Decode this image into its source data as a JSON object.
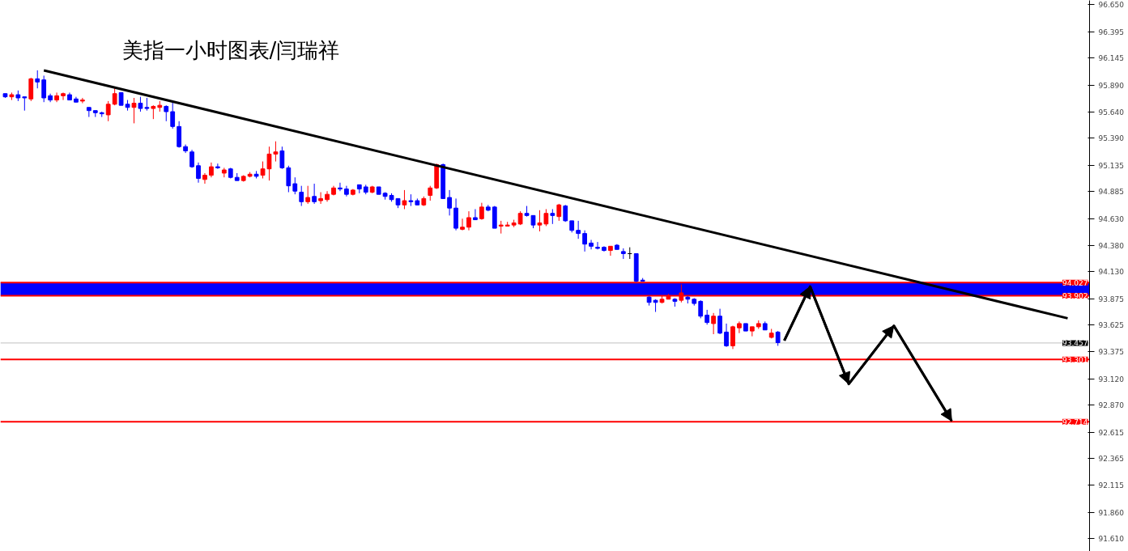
{
  "chart_data": {
    "type": "candlestick",
    "title": "美指一小时图表/闫瑞祥",
    "categories": [
      null,
      null,
      null,
      null,
      null,
      null,
      null,
      null,
      null,
      null,
      null,
      null,
      null,
      null,
      null,
      null,
      null,
      null,
      null,
      null,
      null,
      null,
      null,
      null,
      null,
      null,
      null,
      null,
      null,
      null,
      null,
      null,
      null,
      null,
      null,
      null,
      null,
      null,
      null,
      null,
      null,
      null,
      null,
      null,
      null,
      null,
      null,
      null,
      null,
      null,
      null,
      null,
      null,
      null,
      null,
      null,
      null,
      null,
      null,
      null,
      null,
      null,
      null,
      null,
      null,
      null,
      null,
      null,
      null,
      null,
      null,
      null,
      null,
      null,
      null,
      null,
      null,
      null,
      null,
      null,
      null,
      null,
      null,
      null,
      null,
      null,
      null,
      null,
      null,
      null,
      null,
      null,
      null,
      null,
      null,
      null,
      null,
      null,
      null,
      null,
      null,
      null,
      null,
      null,
      null,
      null,
      null,
      null,
      null,
      null,
      null,
      null,
      null,
      null,
      null,
      null,
      null,
      null,
      null,
      null,
      null,
      null,
      null,
      null,
      null,
      null,
      null,
      null,
      null,
      null,
      null,
      null,
      null,
      null,
      null,
      null,
      null,
      null,
      null,
      null,
      null,
      null,
      null,
      null,
      null,
      null,
      null,
      null,
      null,
      null,
      null,
      null,
      null,
      null,
      null,
      null,
      null,
      null,
      null,
      null,
      null,
      null,
      null,
      null,
      null,
      null,
      null,
      null,
      null
    ],
    "ohlc": [
      [
        95.81,
        95.81,
        95.77,
        95.78
      ],
      [
        95.78,
        95.82,
        95.75,
        95.8
      ],
      [
        95.8,
        95.84,
        95.74,
        95.77
      ],
      [
        95.78,
        95.78,
        95.65,
        95.77
      ],
      [
        95.76,
        95.96,
        95.74,
        95.95
      ],
      [
        95.95,
        96.03,
        95.86,
        95.92
      ],
      [
        95.94,
        95.98,
        95.73,
        95.77
      ],
      [
        95.79,
        95.81,
        95.73,
        95.75
      ],
      [
        95.75,
        95.82,
        95.73,
        95.79
      ],
      [
        95.79,
        95.82,
        95.75,
        95.81
      ],
      [
        95.8,
        95.82,
        95.75,
        95.75
      ],
      [
        95.76,
        95.78,
        95.73,
        95.73
      ],
      [
        95.74,
        95.77,
        95.72,
        95.75
      ],
      [
        95.68,
        95.68,
        95.59,
        95.65
      ],
      [
        95.65,
        95.65,
        95.59,
        95.63
      ],
      [
        95.63,
        95.64,
        95.59,
        95.62
      ],
      [
        95.61,
        95.74,
        95.55,
        95.71
      ],
      [
        95.71,
        95.86,
        95.7,
        95.81
      ],
      [
        95.82,
        95.82,
        95.7,
        95.7
      ],
      [
        95.71,
        95.75,
        95.65,
        95.68
      ],
      [
        95.68,
        95.77,
        95.53,
        95.72
      ],
      [
        95.72,
        95.78,
        95.64,
        95.67
      ],
      [
        95.68,
        95.77,
        95.65,
        95.67
      ],
      [
        95.67,
        95.7,
        95.57,
        95.69
      ],
      [
        95.68,
        95.74,
        95.64,
        95.7
      ],
      [
        95.69,
        95.7,
        95.55,
        95.64
      ],
      [
        95.64,
        95.74,
        95.48,
        95.5
      ],
      [
        95.5,
        95.55,
        95.3,
        95.31
      ],
      [
        95.31,
        95.33,
        95.25,
        95.27
      ],
      [
        95.26,
        95.28,
        95.11,
        95.12
      ],
      [
        95.13,
        95.16,
        94.97,
        95.01
      ],
      [
        95.0,
        95.06,
        94.96,
        95.04
      ],
      [
        95.04,
        95.16,
        95.02,
        95.12
      ],
      [
        95.12,
        95.15,
        95.1,
        95.11
      ],
      [
        95.06,
        95.11,
        95.02,
        95.09
      ],
      [
        95.1,
        95.11,
        95.01,
        95.02
      ],
      [
        95.02,
        95.06,
        94.99,
        94.99
      ],
      [
        94.99,
        95.04,
        94.98,
        95.03
      ],
      [
        95.03,
        95.07,
        95.02,
        95.05
      ],
      [
        95.05,
        95.08,
        95.01,
        95.03
      ],
      [
        95.04,
        95.17,
        95.01,
        95.1
      ],
      [
        95.1,
        95.31,
        94.99,
        95.24
      ],
      [
        95.24,
        95.36,
        95.17,
        95.26
      ],
      [
        95.27,
        95.31,
        95.1,
        95.11
      ],
      [
        95.11,
        95.13,
        94.88,
        94.94
      ],
      [
        94.96,
        95.02,
        94.86,
        94.89
      ],
      [
        94.88,
        94.94,
        94.75,
        94.79
      ],
      [
        94.79,
        94.94,
        94.77,
        94.83
      ],
      [
        94.84,
        94.96,
        94.77,
        94.79
      ],
      [
        94.8,
        94.88,
        94.77,
        94.82
      ],
      [
        94.81,
        94.89,
        94.79,
        94.86
      ],
      [
        94.86,
        94.94,
        94.85,
        94.92
      ],
      [
        94.92,
        94.97,
        94.89,
        94.91
      ],
      [
        94.91,
        94.94,
        94.84,
        94.86
      ],
      [
        94.86,
        94.91,
        94.85,
        94.9
      ],
      [
        94.95,
        94.95,
        94.87,
        94.91
      ],
      [
        94.93,
        94.95,
        94.86,
        94.88
      ],
      [
        94.88,
        94.94,
        94.87,
        94.93
      ],
      [
        94.93,
        94.93,
        94.86,
        94.86
      ],
      [
        94.87,
        94.88,
        94.81,
        94.84
      ],
      [
        94.85,
        94.87,
        94.79,
        94.81
      ],
      [
        94.82,
        94.82,
        94.73,
        94.76
      ],
      [
        94.76,
        94.9,
        94.72,
        94.8
      ],
      [
        94.8,
        94.86,
        94.75,
        94.79
      ],
      [
        94.8,
        94.82,
        94.76,
        94.76
      ],
      [
        94.76,
        94.84,
        94.75,
        94.82
      ],
      [
        94.85,
        94.94,
        94.8,
        94.92
      ],
      [
        94.92,
        95.15,
        94.91,
        95.14
      ],
      [
        95.14,
        95.15,
        94.82,
        94.82
      ],
      [
        94.83,
        94.9,
        94.66,
        94.73
      ],
      [
        94.73,
        94.82,
        94.52,
        94.54
      ],
      [
        94.53,
        94.63,
        94.52,
        94.55
      ],
      [
        94.55,
        94.7,
        94.52,
        94.64
      ],
      [
        94.64,
        94.72,
        94.62,
        94.62
      ],
      [
        94.63,
        94.78,
        94.62,
        94.74
      ],
      [
        94.74,
        94.76,
        94.7,
        94.71
      ],
      [
        94.74,
        94.75,
        94.54,
        94.54
      ],
      [
        94.56,
        94.61,
        94.49,
        94.57
      ],
      [
        94.56,
        94.6,
        94.56,
        94.57
      ],
      [
        94.57,
        94.62,
        94.55,
        94.59
      ],
      [
        94.58,
        94.7,
        94.57,
        94.68
      ],
      [
        94.68,
        94.75,
        94.65,
        94.66
      ],
      [
        94.66,
        94.66,
        94.54,
        94.57
      ],
      [
        94.57,
        94.71,
        94.51,
        94.59
      ],
      [
        94.58,
        94.72,
        94.56,
        94.68
      ],
      [
        94.68,
        94.72,
        94.58,
        94.66
      ],
      [
        94.65,
        94.77,
        94.61,
        94.76
      ],
      [
        94.75,
        94.76,
        94.6,
        94.61
      ],
      [
        94.61,
        94.61,
        94.5,
        94.52
      ],
      [
        94.52,
        94.61,
        94.44,
        94.49
      ],
      [
        94.49,
        94.52,
        94.32,
        94.39
      ],
      [
        94.4,
        94.43,
        94.34,
        94.37
      ],
      [
        94.36,
        94.41,
        94.34,
        94.35
      ],
      [
        94.36,
        94.37,
        94.32,
        94.33
      ],
      [
        94.33,
        94.37,
        94.28,
        94.37
      ],
      [
        94.38,
        94.39,
        94.34,
        94.34
      ],
      [
        94.32,
        94.35,
        94.25,
        94.3
      ],
      [
        94.3,
        94.36,
        94.25,
        94.3
      ],
      [
        94.3,
        94.3,
        94.03,
        94.04
      ],
      [
        94.05,
        94.07,
        94.04,
        94.04
      ],
      [
        93.89,
        93.9,
        93.81,
        93.84
      ],
      [
        93.86,
        93.87,
        93.75,
        93.84
      ],
      [
        93.84,
        93.9,
        93.83,
        93.87
      ],
      [
        93.87,
        93.92,
        93.87,
        93.9
      ],
      [
        93.87,
        93.88,
        93.8,
        93.85
      ],
      [
        93.86,
        94.01,
        93.84,
        93.93
      ],
      [
        93.89,
        93.9,
        93.83,
        93.87
      ],
      [
        93.87,
        93.88,
        93.81,
        93.83
      ],
      [
        93.85,
        93.86,
        93.69,
        93.71
      ],
      [
        93.72,
        93.77,
        93.63,
        93.65
      ],
      [
        93.64,
        93.74,
        93.54,
        93.71
      ],
      [
        93.71,
        93.78,
        93.54,
        93.55
      ],
      [
        93.56,
        93.64,
        93.42,
        93.43
      ],
      [
        93.43,
        93.62,
        93.4,
        93.61
      ],
      [
        93.6,
        93.66,
        93.55,
        93.64
      ],
      [
        93.64,
        93.64,
        93.57,
        93.57
      ],
      [
        93.57,
        93.61,
        93.52,
        93.61
      ],
      [
        93.61,
        93.67,
        93.59,
        93.64
      ],
      [
        93.64,
        93.66,
        93.58,
        93.58
      ],
      [
        93.51,
        93.59,
        93.5,
        93.55
      ],
      [
        93.56,
        93.57,
        93.43,
        93.46
      ],
      null,
      null,
      null,
      null,
      null,
      null,
      null,
      null,
      null,
      null,
      null,
      null,
      null,
      null,
      null,
      null,
      null,
      null,
      null,
      null,
      null,
      null,
      null,
      null,
      null,
      null,
      null,
      null,
      null,
      null,
      null,
      null,
      null,
      null,
      null,
      null,
      null,
      null,
      null,
      null,
      null,
      null,
      null,
      null,
      null,
      null,
      null,
      null
    ],
    "colors": [
      "#0000ff",
      "#ff0000",
      "#0000ff",
      "#0000ff",
      "#ff0000",
      "#0000ff",
      "#0000ff",
      "#0000ff",
      "#ff0000",
      "#ff0000",
      "#0000ff",
      "#0000ff",
      "#ff0000",
      "#0000ff",
      "#0000ff",
      "#0000ff",
      "#ff0000",
      "#ff0000",
      "#0000ff",
      "#0000ff",
      "#ff0000",
      "#0000ff",
      "#0000ff",
      "#ff0000",
      "#ff0000",
      "#0000ff",
      "#0000ff",
      "#0000ff",
      "#0000ff",
      "#0000ff",
      "#0000ff",
      "#ff0000",
      "#ff0000",
      "#0000ff",
      "#ff0000",
      "#0000ff",
      "#0000ff",
      "#ff0000",
      "#ff0000",
      "#0000ff",
      "#ff0000",
      "#ff0000",
      "#ff0000",
      "#0000ff",
      "#0000ff",
      "#0000ff",
      "#0000ff",
      "#ff0000",
      "#0000ff",
      "#ff0000",
      "#ff0000",
      "#ff0000",
      "#0000ff",
      "#0000ff",
      "#ff0000",
      "#0000ff",
      "#0000ff",
      "#ff0000",
      "#0000ff",
      "#0000ff",
      "#0000ff",
      "#0000ff",
      "#ff0000",
      "#0000ff",
      "#0000ff",
      "#ff0000",
      "#ff0000",
      "#ff0000",
      "#0000ff",
      "#0000ff",
      "#0000ff",
      "#ff0000",
      "#ff0000",
      "#0000ff",
      "#ff0000",
      "#0000ff",
      "#0000ff",
      "#ff0000",
      "#ff0000",
      "#ff0000",
      "#ff0000",
      "#0000ff",
      "#0000ff",
      "#ff0000",
      "#ff0000",
      "#0000ff",
      "#ff0000",
      "#0000ff",
      "#0000ff",
      "#0000ff",
      "#0000ff",
      "#0000ff",
      "#0000ff",
      "#0000ff",
      "#ff0000",
      "#0000ff",
      "#0000ff",
      "#000000",
      "#0000ff",
      "#0000ff",
      "#0000ff",
      "#0000ff",
      "#ff0000",
      "#ff0000",
      "#0000ff",
      "#ff0000",
      "#0000ff",
      "#0000ff",
      "#0000ff",
      "#0000ff",
      "#ff0000",
      "#0000ff",
      "#0000ff",
      "#ff0000",
      "#ff0000",
      "#0000ff",
      "#ff0000",
      "#ff0000",
      "#0000ff",
      "#ff0000",
      "#0000ff",
      null,
      null,
      null,
      null,
      null,
      null,
      null,
      null,
      null,
      null,
      null,
      null,
      null,
      null,
      null,
      null,
      null,
      null,
      null,
      null,
      null,
      null,
      null,
      null,
      null,
      null,
      null,
      null,
      null,
      null,
      null,
      null,
      null,
      null,
      null,
      null,
      null,
      null,
      null,
      null,
      null,
      null,
      null,
      null,
      null,
      null,
      null,
      null
    ],
    "series": [
      {
        "type": "line",
        "color": "#000000",
        "values": [
          null,
          null,
          null,
          null,
          null,
          null,
          96.03,
          null,
          null,
          null,
          null,
          null,
          null,
          null,
          null,
          null,
          null,
          null,
          null,
          null,
          null,
          null,
          null,
          null,
          null,
          null,
          null,
          null,
          null,
          null,
          null,
          null,
          null,
          null,
          null,
          null,
          null,
          null,
          null,
          null,
          null,
          null,
          null,
          null,
          null,
          null,
          null,
          null,
          null,
          null,
          null,
          null,
          null,
          null,
          null,
          null,
          null,
          null,
          null,
          null,
          null,
          null,
          null,
          null,
          null,
          null,
          null,
          null,
          null,
          null,
          null,
          null,
          null,
          null,
          null,
          null,
          null,
          null,
          null,
          null,
          null,
          null,
          null,
          null,
          null,
          null,
          null,
          null,
          null,
          null,
          null,
          null,
          null,
          null,
          null,
          null,
          null,
          null,
          null,
          null,
          null,
          null,
          null,
          null,
          null,
          null,
          null,
          null,
          null,
          null,
          null,
          null,
          null,
          null,
          null,
          null,
          null,
          null,
          null,
          null,
          null,
          null,
          null,
          null,
          null,
          null,
          null,
          null,
          null,
          null,
          null,
          null,
          null,
          null,
          null,
          null,
          null,
          null,
          null,
          null,
          null,
          null,
          null,
          null,
          null,
          null,
          null,
          null,
          null,
          null,
          null,
          null,
          null,
          null,
          null,
          null,
          null,
          null,
          null,
          null,
          null,
          null,
          null,
          null,
          null,
          93.69,
          null,
          null,
          null
        ]
      },
      {
        "type": "line",
        "color": "#000000",
        "values": [
          null,
          null,
          null,
          null,
          null,
          null,
          null,
          null,
          null,
          null,
          null,
          null,
          null,
          null,
          null,
          null,
          null,
          null,
          null,
          null,
          null,
          null,
          null,
          null,
          null,
          null,
          null,
          null,
          null,
          null,
          null,
          null,
          null,
          null,
          null,
          null,
          null,
          null,
          null,
          null,
          null,
          null,
          null,
          null,
          null,
          null,
          null,
          null,
          null,
          null,
          null,
          null,
          null,
          null,
          null,
          null,
          null,
          null,
          null,
          null,
          null,
          null,
          null,
          null,
          null,
          null,
          null,
          null,
          null,
          null,
          null,
          null,
          null,
          null,
          null,
          null,
          null,
          null,
          null,
          null,
          null,
          null,
          null,
          null,
          null,
          null,
          null,
          null,
          null,
          null,
          null,
          null,
          null,
          null,
          null,
          null,
          null,
          null,
          null,
          null,
          null,
          null,
          null,
          null,
          null,
          null,
          null,
          null,
          null,
          null,
          null,
          null,
          null,
          null,
          null,
          null,
          null,
          null,
          null,
          null,
          null,
          93.48,
          null,
          null,
          null,
          93.99,
          null,
          null,
          null,
          null,
          null,
          93.07,
          null,
          null,
          null,
          null,
          null,
          null,
          93.62,
          null,
          null,
          null,
          null,
          null,
          null,
          null,
          null,
          92.72,
          null,
          null,
          null,
          null,
          null,
          null,
          null,
          null,
          null,
          null,
          null,
          null,
          null,
          null,
          null,
          null,
          null,
          null,
          null,
          null,
          null
        ]
      }
    ],
    "ylim": [
      91.49,
      96.69
    ],
    "yticks": [
      {
        "value": 96.65,
        "label": "96.650"
      },
      {
        "value": 96.395,
        "label": "96.395"
      },
      {
        "value": 96.145,
        "label": "96.145"
      },
      {
        "value": 95.89,
        "label": "95.890"
      },
      {
        "value": 95.64,
        "label": "95.640"
      },
      {
        "value": 95.39,
        "label": "95.390"
      },
      {
        "value": 95.135,
        "label": "95.135"
      },
      {
        "value": 94.885,
        "label": "94.885"
      },
      {
        "value": 94.63,
        "label": "94.630"
      },
      {
        "value": 94.38,
        "label": "94.380"
      },
      {
        "value": 94.13,
        "label": "94.130"
      },
      {
        "value": 93.875,
        "label": "93.875"
      },
      {
        "value": 93.625,
        "label": "93.625"
      },
      {
        "value": 93.375,
        "label": "93.375"
      },
      {
        "value": 93.12,
        "label": "93.120"
      },
      {
        "value": 92.87,
        "label": "92.870"
      },
      {
        "value": 92.615,
        "label": "92.615"
      },
      {
        "value": 92.365,
        "label": "92.365"
      },
      {
        "value": 92.115,
        "label": "92.115"
      },
      {
        "value": 91.86,
        "label": "91.860"
      },
      {
        "value": 91.61,
        "label": "91.610"
      }
    ],
    "tick_labels": "y",
    "bands": [
      {
        "axis": "y",
        "from": 93.902,
        "to": 94.027,
        "color": "#0000ff"
      }
    ],
    "ref_lines": [
      {
        "axis": "y",
        "value": 94.027,
        "label": "94.027",
        "color": "#ff0000"
      },
      {
        "axis": "y",
        "value": 93.902,
        "label": "93.902",
        "color": "#ff0000"
      },
      {
        "axis": "y",
        "value": 93.457,
        "label": "93.457",
        "color": "#c0c0c0"
      },
      {
        "axis": "y",
        "value": 93.301,
        "label": "93.301",
        "color": "#ff0000"
      },
      {
        "axis": "y",
        "value": 92.714,
        "label": "92.714",
        "color": "#ff0000"
      }
    ]
  }
}
